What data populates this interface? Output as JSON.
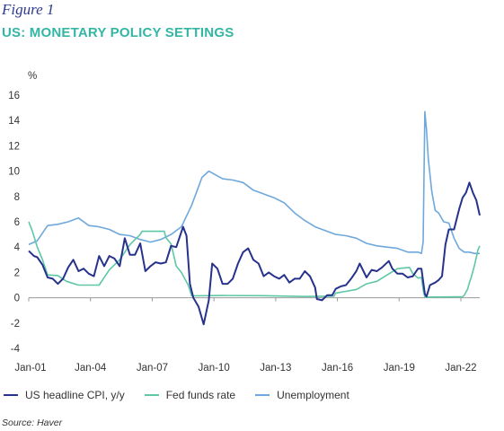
{
  "figure_label": "Figure 1",
  "chart_data": {
    "type": "line",
    "title": "US: MONETARY POLICY SETTINGS",
    "ylabel": "%",
    "xlabel": "",
    "ylim": [
      -4,
      16
    ],
    "yticks": [
      -4,
      -2,
      0,
      2,
      4,
      6,
      8,
      10,
      12,
      14,
      16
    ],
    "x_axis": "time (Jan-2001 to Dec-2022)",
    "xlim": [
      "2001-01",
      "2022-12"
    ],
    "xtick_labels": [
      "Jan-01",
      "Jan-04",
      "Jan-07",
      "Jan-10",
      "Jan-13",
      "Jan-16",
      "Jan-19",
      "Jan-22"
    ],
    "xtick_dates": [
      "2001-01",
      "2004-01",
      "2007-01",
      "2010-01",
      "2013-01",
      "2016-01",
      "2019-01",
      "2022-01"
    ],
    "grid": false,
    "legend_position": "bottom",
    "series": [
      {
        "name": "US headline CPI, y/y",
        "color": "#27328c",
        "points": [
          [
            "2001-01",
            3.7
          ],
          [
            "2001-04",
            3.3
          ],
          [
            "2001-06",
            3.2
          ],
          [
            "2001-09",
            2.6
          ],
          [
            "2001-12",
            1.6
          ],
          [
            "2002-03",
            1.5
          ],
          [
            "2002-06",
            1.1
          ],
          [
            "2002-09",
            1.5
          ],
          [
            "2002-12",
            2.4
          ],
          [
            "2003-03",
            3.0
          ],
          [
            "2003-06",
            2.1
          ],
          [
            "2003-09",
            2.3
          ],
          [
            "2003-12",
            1.9
          ],
          [
            "2004-03",
            1.7
          ],
          [
            "2004-06",
            3.3
          ],
          [
            "2004-09",
            2.5
          ],
          [
            "2004-12",
            3.3
          ],
          [
            "2005-03",
            3.1
          ],
          [
            "2005-06",
            2.5
          ],
          [
            "2005-09",
            4.7
          ],
          [
            "2005-12",
            3.4
          ],
          [
            "2006-03",
            3.4
          ],
          [
            "2006-06",
            4.3
          ],
          [
            "2006-09",
            2.1
          ],
          [
            "2006-12",
            2.5
          ],
          [
            "2007-03",
            2.8
          ],
          [
            "2007-06",
            2.7
          ],
          [
            "2007-09",
            2.8
          ],
          [
            "2007-12",
            4.1
          ],
          [
            "2008-03",
            4.0
          ],
          [
            "2008-07",
            5.6
          ],
          [
            "2008-09",
            4.9
          ],
          [
            "2008-11",
            1.1
          ],
          [
            "2009-01",
            0.0
          ],
          [
            "2009-04",
            -0.7
          ],
          [
            "2009-07",
            -2.1
          ],
          [
            "2009-10",
            -0.2
          ],
          [
            "2009-12",
            2.7
          ],
          [
            "2010-03",
            2.3
          ],
          [
            "2010-06",
            1.1
          ],
          [
            "2010-09",
            1.1
          ],
          [
            "2010-12",
            1.5
          ],
          [
            "2011-03",
            2.7
          ],
          [
            "2011-06",
            3.6
          ],
          [
            "2011-09",
            3.9
          ],
          [
            "2011-12",
            3.0
          ],
          [
            "2012-03",
            2.7
          ],
          [
            "2012-06",
            1.7
          ],
          [
            "2012-09",
            2.0
          ],
          [
            "2012-12",
            1.7
          ],
          [
            "2013-03",
            1.5
          ],
          [
            "2013-06",
            1.8
          ],
          [
            "2013-09",
            1.2
          ],
          [
            "2013-12",
            1.5
          ],
          [
            "2014-03",
            1.5
          ],
          [
            "2014-06",
            2.1
          ],
          [
            "2014-09",
            1.7
          ],
          [
            "2014-12",
            0.8
          ],
          [
            "2015-01",
            -0.1
          ],
          [
            "2015-04",
            -0.2
          ],
          [
            "2015-07",
            0.2
          ],
          [
            "2015-10",
            0.2
          ],
          [
            "2015-12",
            0.7
          ],
          [
            "2016-03",
            0.9
          ],
          [
            "2016-06",
            1.0
          ],
          [
            "2016-09",
            1.5
          ],
          [
            "2016-12",
            2.1
          ],
          [
            "2017-02",
            2.7
          ],
          [
            "2017-06",
            1.6
          ],
          [
            "2017-09",
            2.2
          ],
          [
            "2017-12",
            2.1
          ],
          [
            "2018-03",
            2.4
          ],
          [
            "2018-07",
            2.9
          ],
          [
            "2018-09",
            2.3
          ],
          [
            "2018-12",
            1.9
          ],
          [
            "2019-03",
            1.9
          ],
          [
            "2019-06",
            1.6
          ],
          [
            "2019-09",
            1.7
          ],
          [
            "2019-12",
            2.3
          ],
          [
            "2020-02",
            2.3
          ],
          [
            "2020-04",
            0.3
          ],
          [
            "2020-05",
            0.1
          ],
          [
            "2020-07",
            1.0
          ],
          [
            "2020-10",
            1.2
          ],
          [
            "2020-12",
            1.4
          ],
          [
            "2021-02",
            1.7
          ],
          [
            "2021-04",
            4.2
          ],
          [
            "2021-06",
            5.4
          ],
          [
            "2021-09",
            5.4
          ],
          [
            "2021-12",
            7.0
          ],
          [
            "2022-02",
            7.9
          ],
          [
            "2022-04",
            8.3
          ],
          [
            "2022-06",
            9.1
          ],
          [
            "2022-08",
            8.3
          ],
          [
            "2022-10",
            7.7
          ],
          [
            "2022-12",
            6.5
          ]
        ]
      },
      {
        "name": "Fed funds rate",
        "color": "#5ec7a6",
        "points": [
          [
            "2001-01",
            6.0
          ],
          [
            "2001-03",
            5.3
          ],
          [
            "2001-06",
            4.0
          ],
          [
            "2001-09",
            3.0
          ],
          [
            "2001-12",
            1.8
          ],
          [
            "2002-06",
            1.75
          ],
          [
            "2002-11",
            1.3
          ],
          [
            "2003-06",
            1.0
          ],
          [
            "2004-06",
            1.0
          ],
          [
            "2004-12",
            2.2
          ],
          [
            "2005-06",
            3.0
          ],
          [
            "2005-12",
            4.2
          ],
          [
            "2006-06",
            5.0
          ],
          [
            "2006-07",
            5.25
          ],
          [
            "2007-08",
            5.25
          ],
          [
            "2007-09",
            4.75
          ],
          [
            "2007-12",
            4.25
          ],
          [
            "2008-03",
            2.5
          ],
          [
            "2008-06",
            2.0
          ],
          [
            "2008-10",
            1.0
          ],
          [
            "2008-12",
            0.15
          ],
          [
            "2010-06",
            0.18
          ],
          [
            "2012-06",
            0.16
          ],
          [
            "2014-06",
            0.1
          ],
          [
            "2015-11",
            0.13
          ],
          [
            "2015-12",
            0.37
          ],
          [
            "2016-12",
            0.65
          ],
          [
            "2017-06",
            1.1
          ],
          [
            "2017-12",
            1.3
          ],
          [
            "2018-06",
            1.8
          ],
          [
            "2018-12",
            2.3
          ],
          [
            "2019-07",
            2.4
          ],
          [
            "2019-09",
            1.9
          ],
          [
            "2019-12",
            1.55
          ],
          [
            "2020-02",
            1.6
          ],
          [
            "2020-03",
            0.65
          ],
          [
            "2020-04",
            0.05
          ],
          [
            "2021-12",
            0.08
          ],
          [
            "2022-02",
            0.08
          ],
          [
            "2022-03",
            0.2
          ],
          [
            "2022-05",
            0.7
          ],
          [
            "2022-06",
            1.2
          ],
          [
            "2022-07",
            1.6
          ],
          [
            "2022-09",
            2.6
          ],
          [
            "2022-11",
            3.8
          ],
          [
            "2022-12",
            4.1
          ]
        ]
      },
      {
        "name": "Unemployment",
        "color": "#6fa8dc",
        "points": [
          [
            "2001-01",
            4.2
          ],
          [
            "2001-06",
            4.5
          ],
          [
            "2001-12",
            5.7
          ],
          [
            "2002-06",
            5.8
          ],
          [
            "2002-12",
            6.0
          ],
          [
            "2003-06",
            6.3
          ],
          [
            "2003-12",
            5.7
          ],
          [
            "2004-06",
            5.6
          ],
          [
            "2004-12",
            5.4
          ],
          [
            "2005-06",
            5.0
          ],
          [
            "2005-12",
            4.9
          ],
          [
            "2006-06",
            4.6
          ],
          [
            "2006-12",
            4.4
          ],
          [
            "2007-06",
            4.6
          ],
          [
            "2007-12",
            5.0
          ],
          [
            "2008-06",
            5.6
          ],
          [
            "2008-12",
            7.3
          ],
          [
            "2009-06",
            9.5
          ],
          [
            "2009-10",
            10.0
          ],
          [
            "2010-06",
            9.4
          ],
          [
            "2010-12",
            9.3
          ],
          [
            "2011-06",
            9.1
          ],
          [
            "2011-12",
            8.5
          ],
          [
            "2012-06",
            8.2
          ],
          [
            "2012-12",
            7.9
          ],
          [
            "2013-06",
            7.5
          ],
          [
            "2013-12",
            6.7
          ],
          [
            "2014-06",
            6.1
          ],
          [
            "2014-12",
            5.6
          ],
          [
            "2015-06",
            5.3
          ],
          [
            "2015-12",
            5.0
          ],
          [
            "2016-06",
            4.9
          ],
          [
            "2016-12",
            4.7
          ],
          [
            "2017-06",
            4.3
          ],
          [
            "2017-12",
            4.1
          ],
          [
            "2018-06",
            4.0
          ],
          [
            "2018-12",
            3.9
          ],
          [
            "2019-06",
            3.6
          ],
          [
            "2019-12",
            3.6
          ],
          [
            "2020-02",
            3.5
          ],
          [
            "2020-03",
            4.4
          ],
          [
            "2020-04",
            14.7
          ],
          [
            "2020-05",
            13.2
          ],
          [
            "2020-06",
            11.0
          ],
          [
            "2020-08",
            8.4
          ],
          [
            "2020-10",
            6.9
          ],
          [
            "2020-12",
            6.7
          ],
          [
            "2021-03",
            6.0
          ],
          [
            "2021-06",
            5.9
          ],
          [
            "2021-09",
            4.7
          ],
          [
            "2021-12",
            3.9
          ],
          [
            "2022-03",
            3.6
          ],
          [
            "2022-06",
            3.6
          ],
          [
            "2022-09",
            3.5
          ],
          [
            "2022-12",
            3.5
          ]
        ]
      }
    ],
    "source": "Source: Haver"
  }
}
